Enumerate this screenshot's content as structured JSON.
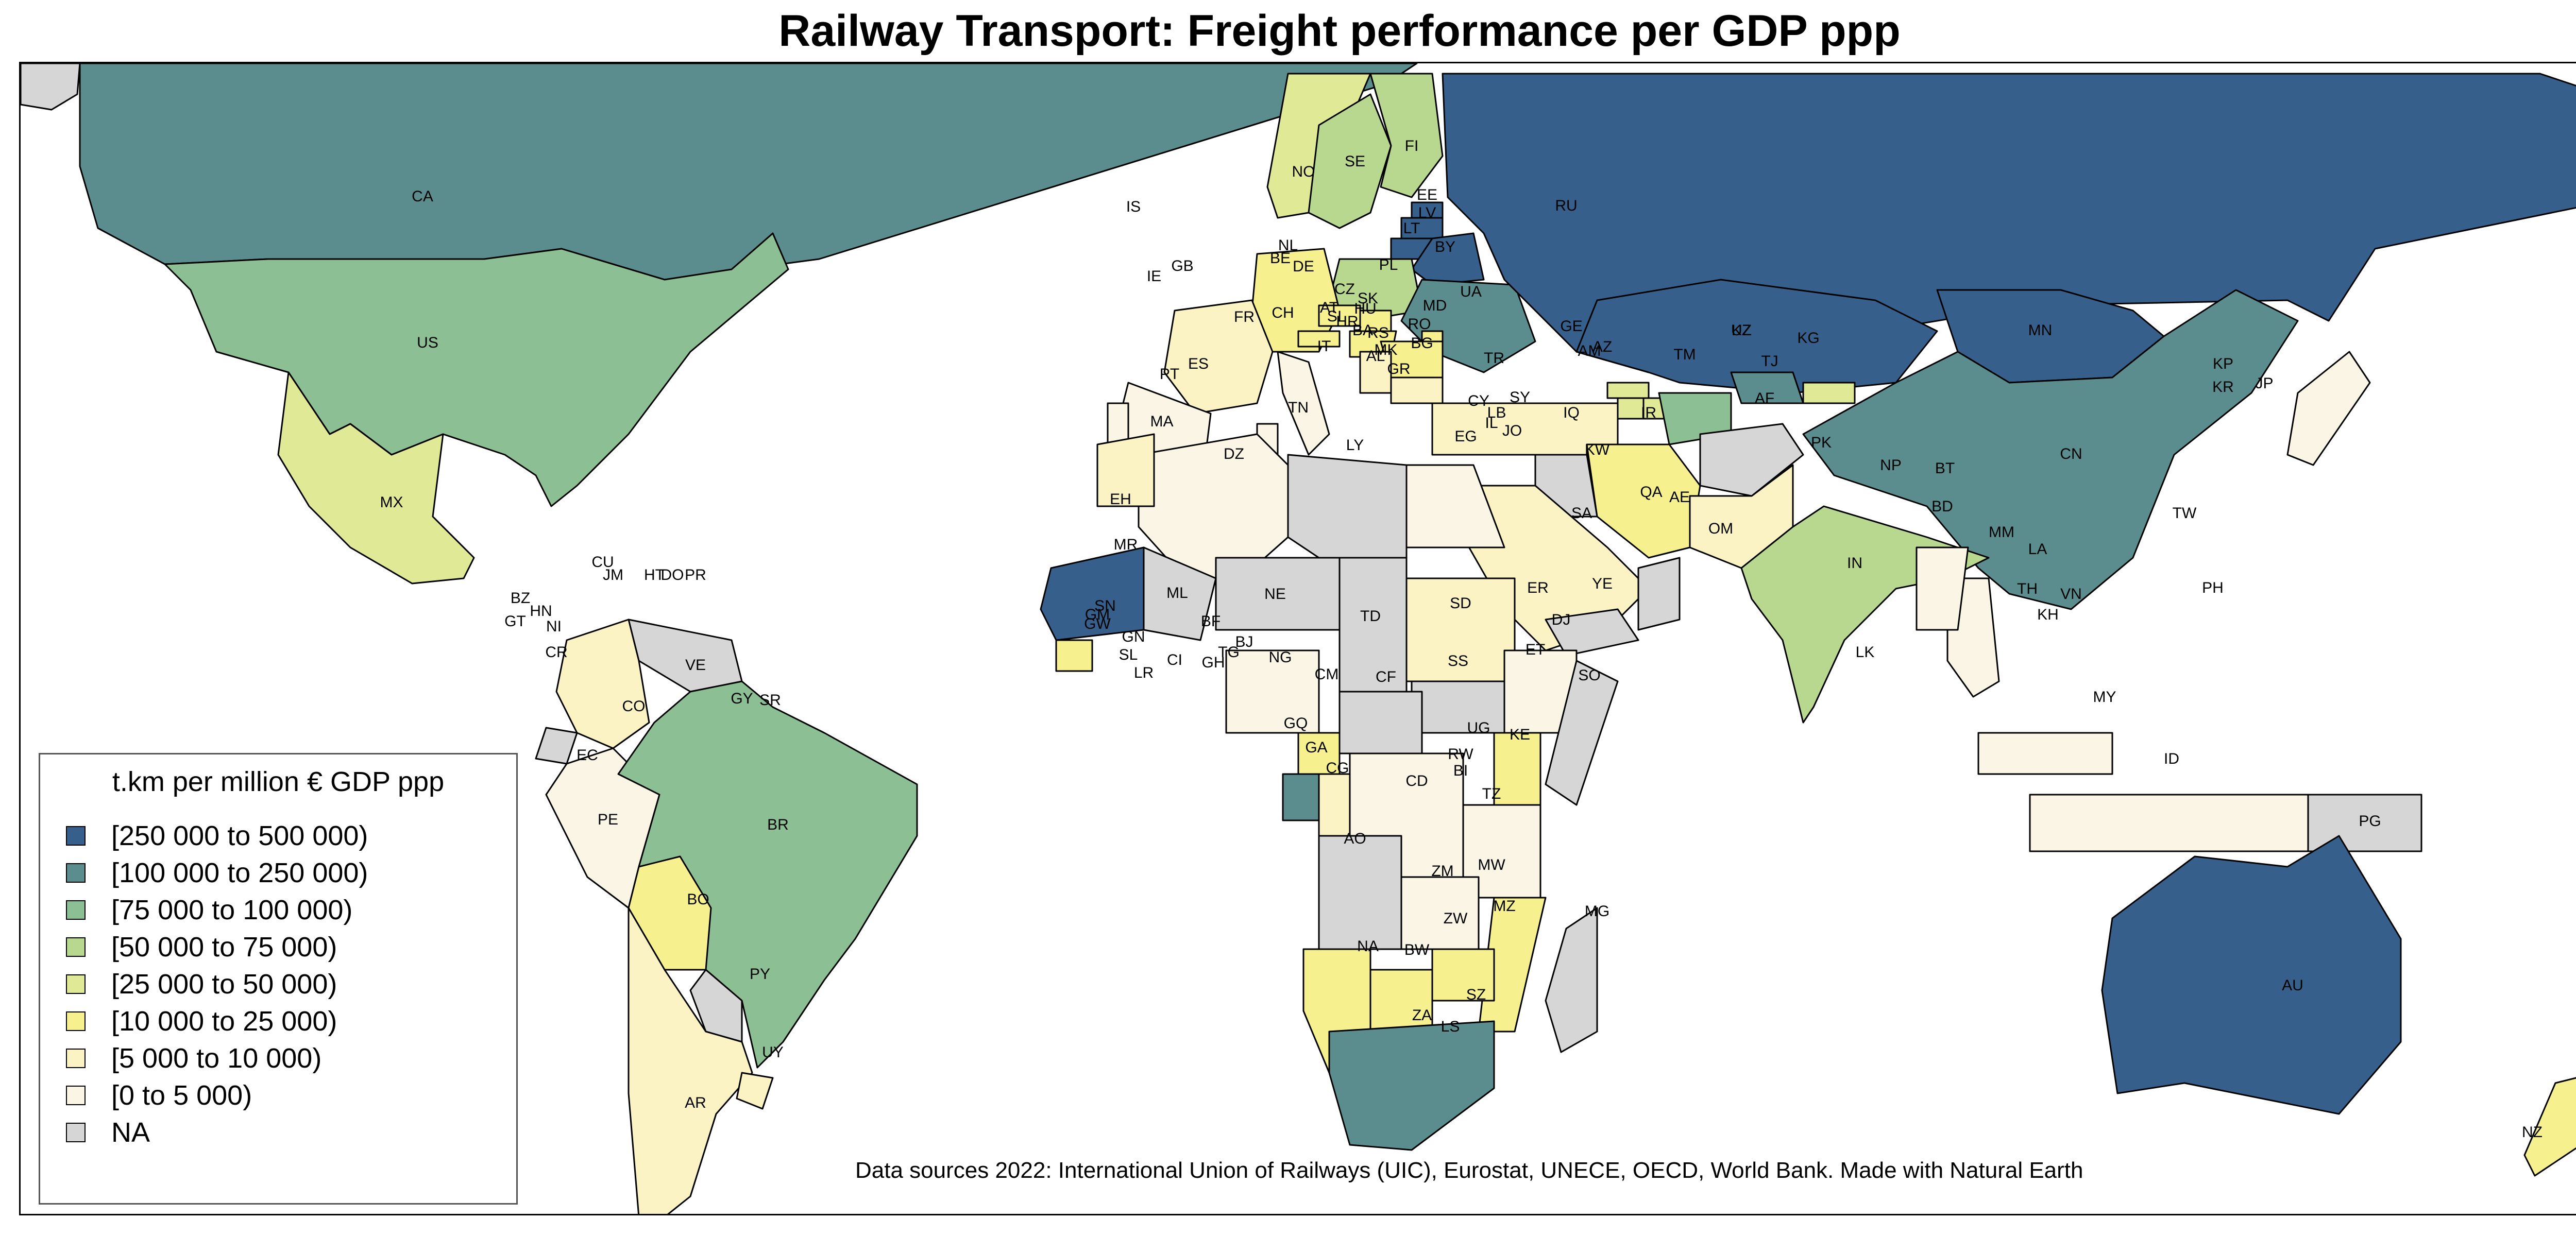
{
  "title": "Railway Transport: Freight performance per GDP ppp",
  "source_note": "Data sources 2022: International Union of Railways (UIC), Eurostat, UNECE, OECD, World Bank. Made with Natural Earth",
  "legend": {
    "title": "t.km per million € GDP ppp",
    "items": [
      {
        "label": "[250 000 to 500 000)",
        "color": "#36608b"
      },
      {
        "label": "[100 000 to 250 000)",
        "color": "#5b8d8f"
      },
      {
        "label": "[75 000 to 100 000)",
        "color": "#8cbf93"
      },
      {
        "label": "[50 000 to 75 000)",
        "color": "#b8d88f"
      },
      {
        "label": "[25 000 to 50 000)",
        "color": "#dfe996"
      },
      {
        "label": "[10 000 to 25 000)",
        "color": "#f7f08f"
      },
      {
        "label": "[5 000 to 10 000)",
        "color": "#fbf3c4"
      },
      {
        "label": "[0 to 5 000)",
        "color": "#fbf5e6"
      },
      {
        "label": "NA",
        "color": "#d6d6d6"
      }
    ]
  },
  "countries": [
    {
      "code": "RU",
      "cls": 0
    },
    {
      "code": "KZ",
      "cls": 0
    },
    {
      "code": "MN",
      "cls": 0
    },
    {
      "code": "AU",
      "cls": 0
    },
    {
      "code": "MR",
      "cls": 0
    },
    {
      "code": "LT",
      "cls": 0
    },
    {
      "code": "LV",
      "cls": 0
    },
    {
      "code": "EE",
      "cls": 0
    },
    {
      "code": "BY",
      "cls": 0
    },
    {
      "code": "CA",
      "cls": 1
    },
    {
      "code": "CN",
      "cls": 1
    },
    {
      "code": "ZA",
      "cls": 1
    },
    {
      "code": "GA",
      "cls": 1
    },
    {
      "code": "UA",
      "cls": 1
    },
    {
      "code": "UZ",
      "cls": 1
    },
    {
      "code": "US",
      "cls": 2
    },
    {
      "code": "BR",
      "cls": 2
    },
    {
      "code": "TM",
      "cls": 2
    },
    {
      "code": "IN",
      "cls": 3
    },
    {
      "code": "PL",
      "cls": 3
    },
    {
      "code": "SE",
      "cls": 3
    },
    {
      "code": "FI",
      "cls": 3
    },
    {
      "code": "MX",
      "cls": 4
    },
    {
      "code": "NO",
      "cls": 4
    },
    {
      "code": "GE",
      "cls": 4
    },
    {
      "code": "AZ",
      "cls": 4
    },
    {
      "code": "AM",
      "cls": 4
    },
    {
      "code": "KG",
      "cls": 4
    },
    {
      "code": "DE",
      "cls": 5
    },
    {
      "code": "IR",
      "cls": 5
    },
    {
      "code": "BO",
      "cls": 5
    },
    {
      "code": "NA",
      "cls": 5
    },
    {
      "code": "BW",
      "cls": 5
    },
    {
      "code": "ZW",
      "cls": 5
    },
    {
      "code": "MZ",
      "cls": 5
    },
    {
      "code": "KE",
      "cls": 5
    },
    {
      "code": "CZ",
      "cls": 5
    },
    {
      "code": "AT",
      "cls": 5
    },
    {
      "code": "SK",
      "cls": 5
    },
    {
      "code": "HU",
      "cls": 5
    },
    {
      "code": "RO",
      "cls": 5
    },
    {
      "code": "MD",
      "cls": 5
    },
    {
      "code": "NZ",
      "cls": 5
    },
    {
      "code": "SN",
      "cls": 5
    },
    {
      "code": "CM",
      "cls": 5
    },
    {
      "code": "FR",
      "cls": 6
    },
    {
      "code": "CO",
      "cls": 6
    },
    {
      "code": "AR",
      "cls": 6
    },
    {
      "code": "PK",
      "cls": 6
    },
    {
      "code": "SD",
      "cls": 6
    },
    {
      "code": "SA",
      "cls": 6
    },
    {
      "code": "MA",
      "cls": 6
    },
    {
      "code": "TR",
      "cls": 6
    },
    {
      "code": "CG",
      "cls": 6
    },
    {
      "code": "UY",
      "cls": 6
    },
    {
      "code": "BG",
      "cls": 6
    },
    {
      "code": "RS",
      "cls": 6
    },
    {
      "code": "ES",
      "cls": 7
    },
    {
      "code": "PT",
      "cls": 7
    },
    {
      "code": "DZ",
      "cls": 7
    },
    {
      "code": "EG",
      "cls": 7
    },
    {
      "code": "PE",
      "cls": 7
    },
    {
      "code": "CD",
      "cls": 7
    },
    {
      "code": "TZ",
      "cls": 7
    },
    {
      "code": "ZM",
      "cls": 7
    },
    {
      "code": "NG",
      "cls": 7
    },
    {
      "code": "ET",
      "cls": 7
    },
    {
      "code": "TH",
      "cls": 7
    },
    {
      "code": "MY",
      "cls": 7
    },
    {
      "code": "ID",
      "cls": 7
    },
    {
      "code": "MM",
      "cls": 7
    },
    {
      "code": "JP",
      "cls": 7
    },
    {
      "code": "TN",
      "cls": 7
    },
    {
      "code": "IT",
      "cls": 7
    },
    {
      "code": "VE",
      "cls": 8
    },
    {
      "code": "AO",
      "cls": 8
    },
    {
      "code": "LY",
      "cls": 8
    },
    {
      "code": "NE",
      "cls": 8
    },
    {
      "code": "TD",
      "cls": 8
    },
    {
      "code": "ML",
      "cls": 8
    },
    {
      "code": "AF",
      "cls": 8
    },
    {
      "code": "MG",
      "cls": 8
    },
    {
      "code": "SO",
      "cls": 8
    },
    {
      "code": "SS",
      "cls": 8
    },
    {
      "code": "CF",
      "cls": 8
    },
    {
      "code": "PY",
      "cls": 8
    },
    {
      "code": "PG",
      "cls": 8
    },
    {
      "code": "EC",
      "cls": 8
    },
    {
      "code": "YE",
      "cls": 8
    },
    {
      "code": "OM",
      "cls": 8
    },
    {
      "code": "IQ",
      "cls": 8
    },
    {
      "code": "GL",
      "cls": 8
    }
  ],
  "labels": [
    "RU",
    "KZ",
    "MN",
    "CN",
    "US",
    "BR",
    "IN",
    "AU",
    "MX",
    "CA",
    "AR",
    "PE",
    "CO",
    "VE",
    "BO",
    "PY",
    "UY",
    "EC",
    "SR",
    "GY",
    "CR",
    "NI",
    "HN",
    "GT",
    "BZ",
    "CU",
    "JM",
    "HT",
    "DO",
    "PR",
    "IS",
    "IE",
    "GB",
    "NO",
    "SE",
    "FI",
    "EE",
    "LV",
    "LT",
    "BY",
    "UA",
    "PL",
    "DE",
    "NL",
    "BE",
    "FR",
    "ES",
    "PT",
    "IT",
    "CH",
    "AT",
    "CZ",
    "SK",
    "HU",
    "SI",
    "HR",
    "BA",
    "RS",
    "RO",
    "MD",
    "BG",
    "MK",
    "AL",
    "GR",
    "TR",
    "CY",
    "LB",
    "SY",
    "IL",
    "JO",
    "IQ",
    "KW",
    "IR",
    "AZ",
    "AM",
    "GE",
    "TM",
    "UZ",
    "KG",
    "TJ",
    "AF",
    "PK",
    "NP",
    "BT",
    "BD",
    "MM",
    "LA",
    "TH",
    "KH",
    "VN",
    "MY",
    "ID",
    "PH",
    "TW",
    "KP",
    "KR",
    "JP",
    "LK",
    "SA",
    "YE",
    "OM",
    "AE",
    "QA",
    "EG",
    "LY",
    "TN",
    "DZ",
    "MA",
    "EH",
    "MR",
    "ML",
    "NE",
    "TD",
    "SD",
    "SS",
    "ER",
    "DJ",
    "ET",
    "SO",
    "KE",
    "UG",
    "RW",
    "BI",
    "TZ",
    "CD",
    "CG",
    "GA",
    "GQ",
    "CM",
    "CF",
    "NG",
    "BJ",
    "TG",
    "GH",
    "CI",
    "LR",
    "SL",
    "GN",
    "GW",
    "SN",
    "GM",
    "BF",
    "AO",
    "ZM",
    "MW",
    "MZ",
    "ZW",
    "BW",
    "NA",
    "ZA",
    "LS",
    "SZ",
    "MG",
    "PG",
    "NZ"
  ]
}
